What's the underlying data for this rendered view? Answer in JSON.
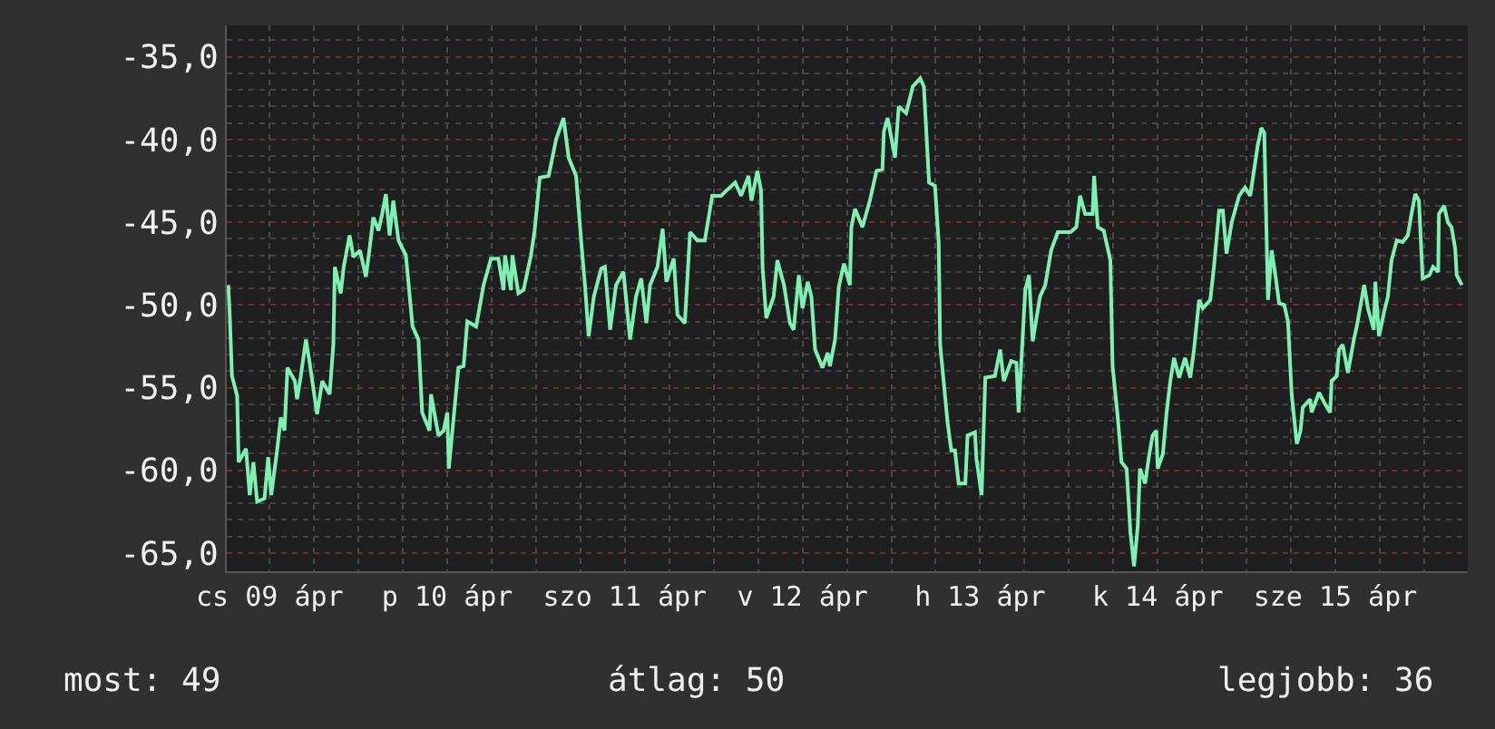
{
  "chart_data": {
    "type": "line",
    "x": [
      "--04-09T06:24",
      "--04-09T06:36",
      "--04-09T06:54",
      "--04-09T07:36",
      "--04-09T07:48",
      "--04-09T08:48",
      "--04-09T09:18",
      "--04-09T09:48",
      "--04-09T10:18",
      "--04-09T11:18",
      "--04-09T11:48",
      "--04-09T12:12",
      "--04-09T13:00",
      "--04-09T13:30",
      "--04-09T14:00",
      "--04-09T14:24",
      "--04-09T15:24",
      "--04-09T15:42",
      "--04-09T16:12",
      "--04-09T16:54",
      "--04-09T17:24",
      "--04-09T18:24",
      "--04-09T19:06",
      "--04-09T20:06",
      "--04-09T20:36",
      "--04-09T20:48",
      "--04-09T21:36",
      "--04-09T22:00",
      "--04-09T22:48",
      "--04-09T23:18",
      "--04-10T00:12",
      "--04-10T01:00",
      "--04-10T01:30",
      "--04-10T02:00",
      "--04-10T02:42",
      "--04-10T03:12",
      "--04-10T03:42",
      "--04-10T04:12",
      "--04-10T04:42",
      "--04-10T05:24",
      "--04-10T06:24",
      "--04-10T07:18",
      "--04-10T08:06",
      "--04-10T08:36",
      "--04-10T09:36",
      "--04-10T09:48",
      "--04-10T10:48",
      "--04-10T11:30",
      "--04-10T12:00",
      "--04-10T12:12",
      "--04-10T13:30",
      "--04-10T14:12",
      "--04-10T14:42",
      "--04-10T15:54",
      "--04-10T16:54",
      "--04-10T17:54",
      "--04-10T18:54",
      "--04-10T19:36",
      "--04-10T19:48",
      "--04-10T20:36",
      "--04-10T20:48",
      "--04-10T21:36",
      "--04-10T22:18",
      "--04-10T23:18",
      "--04-10T23:48",
      "--04-11T00:30",
      "--04-11T01:42",
      "--04-11T02:42",
      "--04-11T03:42",
      "--04-11T04:24",
      "--04-11T05:24",
      "--04-11T06:06",
      "--04-11T06:36",
      "--04-11T07:06",
      "--04-11T07:48",
      "--04-11T08:48",
      "--04-11T09:18",
      "--04-11T10:00",
      "--04-11T10:48",
      "--04-11T11:48",
      "--04-11T12:42",
      "--04-11T13:30",
      "--04-11T14:12",
      "--04-11T14:54",
      "--04-11T15:24",
      "--04-11T16:24",
      "--04-11T17:06",
      "--04-11T17:36",
      "--04-11T18:36",
      "--04-11T19:06",
      "--04-11T20:06",
      "--04-11T20:48",
      "--04-11T21:48",
      "--04-11T22:48",
      "--04-11T23:48",
      "--04-12T01:00",
      "--04-12T01:42",
      "--04-12T02:54",
      "--04-12T03:42",
      "--04-12T04:42",
      "--04-12T05:06",
      "--04-12T05:54",
      "--04-12T06:24",
      "--04-12T06:36",
      "--04-12T07:06",
      "--04-12T08:06",
      "--04-12T08:36",
      "--04-12T09:30",
      "--04-12T10:18",
      "--04-12T10:48",
      "--04-12T11:30",
      "--04-12T12:00",
      "--04-12T12:42",
      "--04-12T13:12",
      "--04-12T13:42",
      "--04-12T14:42",
      "--04-12T15:24",
      "--04-12T15:42",
      "--04-12T16:24",
      "--04-12T16:54",
      "--04-12T17:36",
      "--04-12T18:24",
      "--04-12T18:36",
      "--04-12T19:06",
      "--04-12T20:06",
      "--04-12T21:06",
      "--04-12T22:00",
      "--04-12T22:48",
      "--04-12T23:00",
      "--04-12T23:30",
      "--04-13T00:30",
      "--04-13T01:00",
      "--04-13T02:00",
      "--04-13T02:54",
      "--04-13T03:54",
      "--04-13T04:24",
      "--04-13T05:06",
      "--04-13T05:54",
      "--04-13T06:24",
      "--04-13T06:36",
      "--04-13T07:36",
      "--04-13T08:06",
      "--04-13T08:36",
      "--04-13T09:06",
      "--04-13T10:00",
      "--04-13T10:18",
      "--04-13T11:18",
      "--04-13T11:30",
      "--04-13T12:12",
      "--04-13T12:42",
      "--04-13T14:00",
      "--04-13T14:42",
      "--04-13T15:12",
      "--04-13T16:12",
      "--04-13T16:54",
      "--04-13T17:12",
      "--04-13T17:36",
      "--04-13T18:06",
      "--04-13T18:36",
      "--04-13T19:06",
      "--04-13T20:06",
      "--04-13T20:48",
      "--04-13T21:36",
      "--04-13T22:30",
      "--04-14T00:12",
      "--04-14T01:00",
      "--04-14T01:30",
      "--04-14T02:12",
      "--04-14T03:12",
      "--04-14T03:24",
      "--04-14T03:54",
      "--04-14T04:42",
      "--04-14T05:36",
      "--04-14T05:54",
      "--04-14T06:36",
      "--04-14T07:06",
      "--04-14T07:48",
      "--04-14T08:18",
      "--04-14T08:48",
      "--04-14T09:18",
      "--04-14T09:36",
      "--04-14T10:18",
      "--04-14T10:48",
      "--04-14T11:18",
      "--04-14T11:48",
      "--04-14T12:00",
      "--04-14T12:42",
      "--04-14T13:12",
      "--04-14T13:42",
      "--04-14T14:12",
      "--04-14T14:54",
      "--04-14T15:42",
      "--04-14T16:24",
      "--04-14T16:54",
      "--04-14T17:36",
      "--04-14T18:06",
      "--04-14T19:06",
      "--04-14T19:36",
      "--04-14T20:18",
      "--04-14T20:48",
      "--04-14T21:18",
      "--04-14T22:00",
      "--04-14T23:00",
      "--04-14T23:48",
      "--04-15T00:30",
      "--04-15T01:30",
      "--04-15T02:00",
      "--04-15T02:24",
      "--04-15T02:54",
      "--04-15T03:24",
      "--04-15T03:54",
      "--04-15T04:24",
      "--04-15T05:06",
      "--04-15T05:36",
      "--04-15T06:06",
      "--04-15T06:48",
      "--04-15T07:18",
      "--04-15T07:36",
      "--04-15T08:36",
      "--04-15T08:48",
      "--04-15T09:48",
      "--04-15T10:30",
      "--04-15T11:18",
      "--04-15T11:30",
      "--04-15T12:12",
      "--04-15T12:30",
      "--04-15T13:00",
      "--04-15T13:42",
      "--04-15T14:30",
      "--04-15T14:54",
      "--04-15T15:54",
      "--04-15T16:24",
      "--04-15T17:12",
      "--04-15T17:24",
      "--04-15T17:54",
      "--04-15T18:36",
      "--04-15T19:06",
      "--04-15T19:36",
      "--04-15T20:18",
      "--04-15T21:06",
      "--04-15T21:48",
      "--04-15T22:18",
      "--04-15T22:48",
      "--04-15T23:18",
      "--04-15T23:48",
      "--04-16T00:42",
      "--04-16T01:12",
      "--04-16T01:54",
      "--04-16T02:00",
      "--04-16T02:42",
      "--04-16T03:12",
      "--04-16T03:42",
      "--04-16T04:12",
      "--04-16T04:24",
      "--04-16T05:06"
    ],
    "series": [
      {
        "color": "#7ef0b4",
        "values": [
          -48.8,
          -50.6,
          -54.3,
          -55.5,
          -59.5,
          -58.7,
          -61.5,
          -59.5,
          -61.9,
          -61.7,
          -59.2,
          -61.5,
          -58.8,
          -56.8,
          -57.6,
          -53.8,
          -54.6,
          -55.7,
          -54.3,
          -52.1,
          -53.5,
          -56.6,
          -54.6,
          -55.4,
          -52.4,
          -47.7,
          -49.3,
          -47.7,
          -45.8,
          -47.1,
          -46.7,
          -48.3,
          -46.6,
          -44.7,
          -45.5,
          -44.5,
          -43.3,
          -45.8,
          -43.7,
          -46.1,
          -47.0,
          -51.3,
          -52.1,
          -56.5,
          -57.6,
          -55.4,
          -57.9,
          -57.6,
          -56.5,
          -59.9,
          -53.8,
          -53.7,
          -51.0,
          -51.3,
          -48.8,
          -47.2,
          -47.2,
          -49.1,
          -47.0,
          -49.1,
          -47.0,
          -49.3,
          -49.1,
          -47.0,
          -45.5,
          -42.3,
          -42.2,
          -40.0,
          -38.7,
          -41.1,
          -42.2,
          -46.2,
          -48.8,
          -51.9,
          -49.5,
          -47.8,
          -47.7,
          -51.5,
          -48.8,
          -48.0,
          -52.1,
          -49.5,
          -48.4,
          -51.1,
          -48.8,
          -47.7,
          -45.4,
          -48.6,
          -47.2,
          -50.6,
          -51.1,
          -45.6,
          -46.1,
          -46.1,
          -43.4,
          -43.4,
          -43.1,
          -42.6,
          -43.4,
          -42.2,
          -43.7,
          -41.9,
          -43.1,
          -47.7,
          -50.8,
          -49.5,
          -47.3,
          -48.8,
          -51.1,
          -51.5,
          -48.2,
          -50.2,
          -48.6,
          -49.5,
          -52.7,
          -53.8,
          -52.9,
          -53.7,
          -52.1,
          -48.9,
          -47.5,
          -48.8,
          -45.3,
          -44.2,
          -45.3,
          -43.7,
          -41.9,
          -41.8,
          -39.5,
          -38.7,
          -41.1,
          -38.0,
          -38.4,
          -36.8,
          -36.3,
          -36.8,
          -42.6,
          -42.8,
          -46.2,
          -52.4,
          -57.1,
          -58.8,
          -58.8,
          -60.8,
          -60.8,
          -57.9,
          -57.7,
          -59.3,
          -61.5,
          -54.4,
          -54.3,
          -52.7,
          -54.6,
          -53.4,
          -53.5,
          -56.5,
          -53.2,
          -49.1,
          -48.2,
          -52.2,
          -49.5,
          -48.8,
          -46.7,
          -45.6,
          -45.6,
          -45.3,
          -43.4,
          -44.5,
          -44.5,
          -42.2,
          -45.3,
          -45.5,
          -47.3,
          -53.7,
          -56.8,
          -59.5,
          -59.9,
          -63.7,
          -65.8,
          -63.4,
          -59.9,
          -60.8,
          -59.2,
          -57.9,
          -57.6,
          -59.9,
          -59.0,
          -56.5,
          -54.6,
          -53.2,
          -54.4,
          -53.2,
          -54.4,
          -52.7,
          -49.7,
          -50.2,
          -49.7,
          -47.7,
          -44.3,
          -44.3,
          -46.9,
          -45.0,
          -43.4,
          -42.9,
          -43.4,
          -40.4,
          -39.3,
          -39.6,
          -49.7,
          -46.7,
          -48.2,
          -49.9,
          -50.0,
          -51.0,
          -55.4,
          -58.4,
          -57.6,
          -56.2,
          -55.7,
          -56.5,
          -55.3,
          -55.9,
          -56.5,
          -54.6,
          -54.3,
          -52.7,
          -52.4,
          -54.1,
          -52.1,
          -51.3,
          -48.8,
          -50.2,
          -51.5,
          -48.6,
          -51.9,
          -50.4,
          -49.5,
          -47.3,
          -46.1,
          -46.2,
          -45.8,
          -44.5,
          -43.3,
          -43.7,
          -48.4,
          -48.2,
          -47.7,
          -48.0,
          -44.5,
          -44.0,
          -45.0,
          -45.3,
          -46.6,
          -48.2,
          -48.8
        ]
      }
    ],
    "xlim": [
      "--04-09T06:12",
      "--04-16T05:54"
    ],
    "xticks": [
      {
        "value": "--04-09T12:00",
        "label": "cs 09 ápr"
      },
      {
        "value": "--04-10T12:00",
        "label": "p 10 ápr"
      },
      {
        "value": "--04-11T12:00",
        "label": "szo 11 ápr"
      },
      {
        "value": "--04-12T12:00",
        "label": "v 12 ápr"
      },
      {
        "value": "--04-13T12:00",
        "label": "h 13 ápr"
      },
      {
        "value": "--04-14T12:00",
        "label": "k 14 ápr"
      },
      {
        "value": "--04-15T12:00",
        "label": "sze 15 ápr"
      }
    ],
    "ylim": [
      -66.1,
      -33.1
    ],
    "yticks": [
      {
        "value": -35,
        "label": "-35,0"
      },
      {
        "value": -40,
        "label": "-40,0"
      },
      {
        "value": -45,
        "label": "-45,0"
      },
      {
        "value": -50,
        "label": "-50,0"
      },
      {
        "value": -55,
        "label": "-55,0"
      },
      {
        "value": -60,
        "label": "-60,0"
      },
      {
        "value": -65,
        "label": "-65,0"
      }
    ],
    "grid": true,
    "marker": "none",
    "line_style": "solid",
    "annotations": [
      "most: 49",
      "átlag: 50",
      "legjobb: 36"
    ]
  }
}
